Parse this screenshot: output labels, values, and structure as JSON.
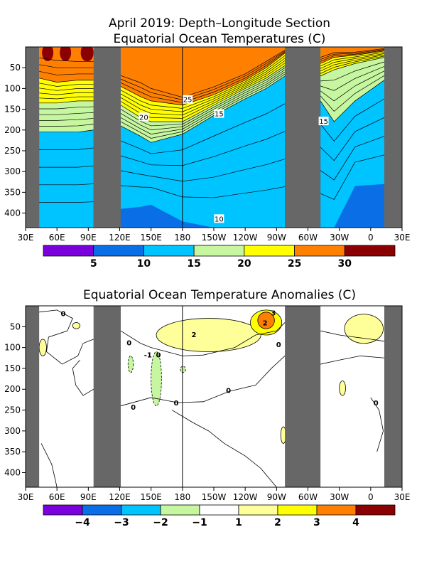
{
  "chart_data": [
    {
      "type": "heatmap",
      "title": "April 2019: Depth–Longitude Section",
      "subtitle": "Equatorial Ocean Temperatures (C)",
      "xlabel": "",
      "ylabel": "",
      "x_ticks": [
        "30E",
        "60E",
        "90E",
        "120E",
        "150E",
        "180",
        "150W",
        "120W",
        "90W",
        "60W",
        "30W",
        "0",
        "30E"
      ],
      "x_tick_values": [
        30,
        60,
        90,
        120,
        150,
        180,
        210,
        240,
        270,
        300,
        330,
        360,
        390
      ],
      "y_ticks": [
        50,
        100,
        150,
        200,
        250,
        300,
        350,
        400
      ],
      "xlim": [
        30,
        390
      ],
      "ylim": [
        435,
        0
      ],
      "y_unit": "m",
      "land_masks": [
        [
          30,
          43
        ],
        [
          95,
          121
        ],
        [
          278,
          312
        ],
        [
          373,
          390
        ]
      ],
      "isotherm_labels": [
        {
          "text": "25",
          "x": 185,
          "y": 128
        },
        {
          "text": "20",
          "x": 143,
          "y": 170
        },
        {
          "text": "15",
          "x": 215,
          "y": 162
        },
        {
          "text": "15",
          "x": 315,
          "y": 180
        },
        {
          "text": "10",
          "x": 215,
          "y": 415
        }
      ],
      "profiles": [
        {
          "lon": 43,
          "t28": 10,
          "t25": 75,
          "t20": 135,
          "t15": 205,
          "t10": 470
        },
        {
          "lon": 60,
          "t28": 15,
          "t25": 85,
          "t20": 135,
          "t15": 205,
          "t10": 470
        },
        {
          "lon": 80,
          "t28": 20,
          "t25": 80,
          "t20": 130,
          "t15": 205,
          "t10": 470
        },
        {
          "lon": 95,
          "t28": 20,
          "t25": 80,
          "t20": 130,
          "t15": 200,
          "t10": 470
        },
        {
          "lon": 121,
          "t28": 60,
          "t25": 95,
          "t20": 140,
          "t15": 190,
          "t10": 390
        },
        {
          "lon": 140,
          "t28": 75,
          "t25": 120,
          "t20": 170,
          "t15": 215,
          "t10": 385
        },
        {
          "lon": 150,
          "t28": 90,
          "t25": 130,
          "t20": 180,
          "t15": 230,
          "t10": 380
        },
        {
          "lon": 180,
          "t28": 115,
          "t25": 140,
          "t20": 180,
          "t15": 210,
          "t10": 420
        },
        {
          "lon": 210,
          "t28": 90,
          "t25": 115,
          "t20": 140,
          "t15": 165,
          "t10": 460
        },
        {
          "lon": 240,
          "t28": 60,
          "t25": 80,
          "t20": 100,
          "t15": 125,
          "t10": 470
        },
        {
          "lon": 260,
          "t28": 30,
          "t25": 50,
          "t20": 75,
          "t15": 100,
          "t10": 470
        },
        {
          "lon": 278,
          "t28": 5,
          "t25": 15,
          "t20": 45,
          "t15": 70,
          "t10": 470
        },
        {
          "lon": 312,
          "t28": 20,
          "t25": 40,
          "t20": 70,
          "t15": 130,
          "t10": 470
        },
        {
          "lon": 325,
          "t28": 10,
          "t25": 25,
          "t20": 55,
          "t15": 180,
          "t10": 470
        },
        {
          "lon": 345,
          "t28": 10,
          "t25": 20,
          "t20": 40,
          "t15": 130,
          "t10": 335
        },
        {
          "lon": 373,
          "t28": 2,
          "t25": 10,
          "t20": 25,
          "t15": 80,
          "t10": 330
        }
      ],
      "colorbar": {
        "labels": [
          "5",
          "10",
          "15",
          "20",
          "25",
          "30"
        ],
        "colors": [
          "#7a00dc",
          "#0a6ee6",
          "#00c4ff",
          "#c6f7a0",
          "#ffff00",
          "#ff8000",
          "#8b0000"
        ]
      }
    },
    {
      "type": "heatmap",
      "title": "Equatorial Ocean Temperature Anomalies (C)",
      "xlabel": "",
      "ylabel": "",
      "x_ticks": [
        "30E",
        "60E",
        "90E",
        "120E",
        "150E",
        "180",
        "150W",
        "120W",
        "90W",
        "60W",
        "30W",
        "0",
        "30E"
      ],
      "x_tick_values": [
        30,
        60,
        90,
        120,
        150,
        180,
        210,
        240,
        270,
        300,
        330,
        360,
        390
      ],
      "y_ticks": [
        50,
        100,
        150,
        200,
        250,
        300,
        350,
        400
      ],
      "xlim": [
        30,
        390
      ],
      "ylim": [
        435,
        0
      ],
      "y_unit": "m",
      "land_masks": [
        [
          30,
          43
        ],
        [
          95,
          121
        ],
        [
          278,
          312
        ],
        [
          373,
          390
        ]
      ],
      "anomaly_regions": [
        {
          "value": 2,
          "lon": [
            155,
            255
          ],
          "depth": [
            30,
            110
          ]
        },
        {
          "value": 3,
          "lon": [
            245,
            275
          ],
          "depth": [
            10,
            70
          ]
        },
        {
          "value": 4,
          "lon": [
            252,
            268
          ],
          "depth": [
            15,
            55
          ]
        },
        {
          "value": 2,
          "lon": [
            335,
            372
          ],
          "depth": [
            20,
            90
          ]
        },
        {
          "value": 2,
          "lon": [
            43,
            50
          ],
          "depth": [
            80,
            120
          ]
        },
        {
          "value": 2,
          "lon": [
            75,
            82
          ],
          "depth": [
            40,
            55
          ]
        },
        {
          "value": -2,
          "lon": [
            150,
            160
          ],
          "depth": [
            110,
            240
          ]
        },
        {
          "value": -2,
          "lon": [
            128,
            133
          ],
          "depth": [
            120,
            160
          ]
        },
        {
          "value": -2,
          "lon": [
            178,
            183
          ],
          "depth": [
            145,
            160
          ]
        },
        {
          "value": 2,
          "lon": [
            330,
            336
          ],
          "depth": [
            180,
            215
          ]
        },
        {
          "value": 2,
          "lon": [
            274,
            279
          ],
          "depth": [
            290,
            330
          ]
        }
      ],
      "contour_labels": [
        {
          "text": "2",
          "x": 191,
          "y": 68
        },
        {
          "text": "2",
          "x": 259,
          "y": 40
        },
        {
          "text": "3",
          "x": 267,
          "y": 16
        },
        {
          "text": "0",
          "x": 66,
          "y": 18
        },
        {
          "text": "0",
          "x": 129,
          "y": 88
        },
        {
          "text": "-1",
          "x": 147,
          "y": 117
        },
        {
          "text": "0",
          "x": 157,
          "y": 117
        },
        {
          "text": "0",
          "x": 272,
          "y": 92
        },
        {
          "text": "0",
          "x": 224,
          "y": 202
        },
        {
          "text": "0",
          "x": 174,
          "y": 232
        },
        {
          "text": "0",
          "x": 133,
          "y": 242
        },
        {
          "text": "0",
          "x": 365,
          "y": 232
        }
      ],
      "colorbar": {
        "labels": [
          "−4",
          "−3",
          "−2",
          "−1",
          "1",
          "2",
          "3",
          "4"
        ],
        "colors": [
          "#7a00dc",
          "#0a6ee6",
          "#00c4ff",
          "#c6f7a0",
          "#ffffff",
          "#ffff99",
          "#ffff00",
          "#ff8000",
          "#8b0000"
        ]
      }
    }
  ],
  "colors": {
    "land": "#676767",
    "t_le10": "#0a6ee6",
    "t10_15": "#00c4ff",
    "t15_20": "#c6f7a0",
    "t20_25": "#ffff00",
    "t25_30": "#ff8000",
    "t_gt30": "#8b0000",
    "anom_2_3": "#ffff99",
    "anom_3_4": "#ffff00",
    "anom_gt4": "#ff8000",
    "anom_neg": "#c6f7a0"
  }
}
